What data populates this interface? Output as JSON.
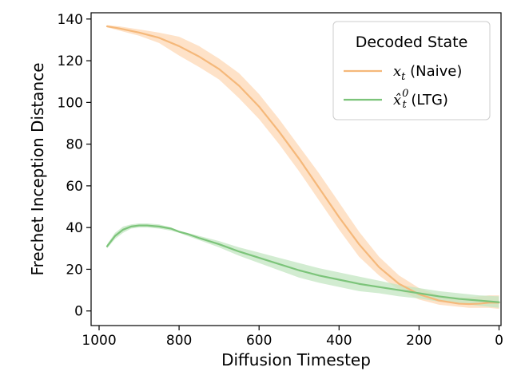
{
  "chart_data": {
    "type": "line",
    "xlabel": "Diffusion Timestep",
    "ylabel": "Frechet Inception Distance",
    "xlim": [
      1020,
      -5
    ],
    "ylim": [
      -7,
      143
    ],
    "x_inverted": true,
    "xticks": [
      1000,
      800,
      600,
      400,
      200,
      0
    ],
    "yticks": [
      0,
      20,
      40,
      60,
      80,
      100,
      120,
      140
    ],
    "grid": false,
    "legend": {
      "title": "Decoded State",
      "placement": "top-right"
    },
    "series": [
      {
        "name_main": "x",
        "name_sub": "t",
        "name_suffix": " (Naive)",
        "color": "#f5b87a",
        "band_color": "#fdd8b5",
        "x": [
          980,
          950,
          900,
          850,
          800,
          750,
          700,
          650,
          600,
          550,
          500,
          450,
          400,
          350,
          300,
          250,
          200,
          150,
          100,
          75,
          50,
          25,
          0
        ],
        "y": [
          136.5,
          135.5,
          133.5,
          131,
          127,
          122,
          116,
          108,
          98,
          86,
          73,
          59,
          45,
          32,
          21,
          13,
          8,
          5,
          3.5,
          3.3,
          3.5,
          4,
          4
        ],
        "upper": [
          137,
          136.5,
          135,
          133.5,
          131.5,
          127,
          121,
          114,
          104,
          92,
          79,
          66,
          52,
          38,
          26,
          17,
          11,
          7.5,
          6.5,
          6.5,
          7,
          7.5,
          7.5
        ],
        "lower": [
          136,
          134.5,
          132,
          128.5,
          122.5,
          117,
          111,
          102,
          92,
          80,
          67,
          53,
          39,
          26,
          17,
          10,
          5.5,
          3,
          2,
          1.5,
          1.5,
          1.5,
          1
        ]
      },
      {
        "name_main": "x̂",
        "name_sub": "t",
        "name_sup": "0",
        "name_suffix": " (LTG)",
        "color": "#7cc47a",
        "band_color": "#c3e6c1",
        "x": [
          980,
          960,
          940,
          920,
          900,
          880,
          850,
          820,
          800,
          780,
          750,
          700,
          650,
          600,
          550,
          500,
          450,
          400,
          350,
          300,
          250,
          200,
          150,
          100,
          50,
          0
        ],
        "y": [
          31,
          36,
          39,
          40.5,
          41,
          41,
          40.5,
          39.5,
          38,
          37,
          35,
          32,
          28.5,
          25.5,
          22.5,
          19.5,
          17,
          15,
          13,
          11.5,
          10,
          8.5,
          7,
          5.8,
          5,
          4.2
        ],
        "upper": [
          32,
          37.5,
          40.5,
          41.5,
          42,
          42,
          41.5,
          40,
          38.5,
          37.5,
          36,
          33.5,
          30.5,
          28,
          25.5,
          23,
          20.5,
          18.5,
          16.5,
          14.5,
          12.5,
          11,
          9.5,
          8.5,
          7.5,
          7
        ],
        "lower": [
          30,
          34.5,
          37.5,
          39.5,
          40,
          40,
          39.5,
          38.5,
          37.5,
          36,
          34,
          30.5,
          26.5,
          23,
          19.5,
          16,
          13.5,
          11.5,
          9.5,
          8.5,
          7,
          6,
          4.5,
          3.5,
          2.5,
          1.5
        ]
      }
    ]
  }
}
